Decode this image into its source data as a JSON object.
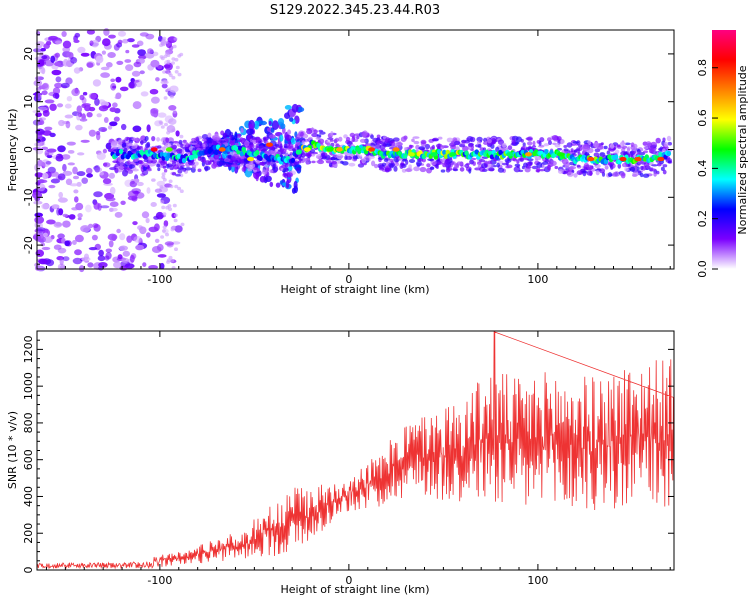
{
  "title": "S129.2022.345.23.44.R03",
  "chart_data": [
    {
      "type": "heatmap",
      "xlabel": "Height of straight line (km)",
      "ylabel": "Frequency (Hz)",
      "xlim": [
        -165,
        172
      ],
      "ylim": [
        -25,
        25
      ],
      "xticks": [
        -100,
        0,
        100
      ],
      "yticks": [
        -20,
        -10,
        0,
        10,
        20
      ],
      "colorbar": {
        "label": "Normalized spectral amplitude",
        "range": [
          0,
          0.95
        ],
        "ticks": [
          0.0,
          0.2,
          0.4,
          0.6,
          0.8
        ],
        "colors": [
          "#ffffff",
          "#7b00ff",
          "#0000ff",
          "#00ffff",
          "#00ff00",
          "#ffff00",
          "#ff8000",
          "#ff0000",
          "#ff0080"
        ]
      },
      "ridge": {
        "x": [
          -125,
          -110,
          -100,
          -90,
          -80,
          -70,
          -60,
          -50,
          -40,
          -30,
          -25,
          -20,
          -10,
          0,
          10,
          20,
          40,
          60,
          80,
          100,
          110,
          120,
          140,
          160,
          170
        ],
        "y": [
          -1,
          -1,
          -1,
          -2,
          -1,
          0,
          0,
          -1,
          -2,
          -2,
          0,
          1,
          0,
          0,
          0,
          -1,
          -1,
          -1,
          -1,
          -1,
          -1,
          -2,
          -2,
          -2,
          -1
        ]
      }
    },
    {
      "type": "line",
      "xlabel": "Height of straight line (km)",
      "ylabel": "SNR (10 * v/v)",
      "xlim": [
        -165,
        172
      ],
      "ylim": [
        0,
        1300
      ],
      "xticks": [
        -100,
        0,
        100
      ],
      "yticks": [
        0,
        200,
        400,
        600,
        800,
        1000,
        1200
      ],
      "color": "#ee3333",
      "envelope": {
        "x": [
          -165,
          -140,
          -120,
          -105,
          -100,
          -95,
          -85,
          -75,
          -65,
          -55,
          -45,
          -35,
          -25,
          -20,
          -10,
          0,
          10,
          20,
          25,
          40,
          60,
          75,
          90,
          110,
          130,
          150,
          172
        ],
        "low": [
          10,
          10,
          10,
          10,
          15,
          20,
          30,
          40,
          50,
          60,
          70,
          80,
          100,
          150,
          250,
          320,
          330,
          350,
          380,
          400,
          350,
          350,
          300,
          300,
          300,
          300,
          320
        ],
        "high": [
          40,
          40,
          40,
          50,
          110,
          90,
          110,
          160,
          190,
          210,
          350,
          380,
          500,
          450,
          480,
          520,
          600,
          650,
          800,
          850,
          950,
          1100,
          1050,
          1100,
          1050,
          1150,
          1150
        ]
      },
      "peak": {
        "x": 77,
        "y": 1295
      }
    }
  ]
}
